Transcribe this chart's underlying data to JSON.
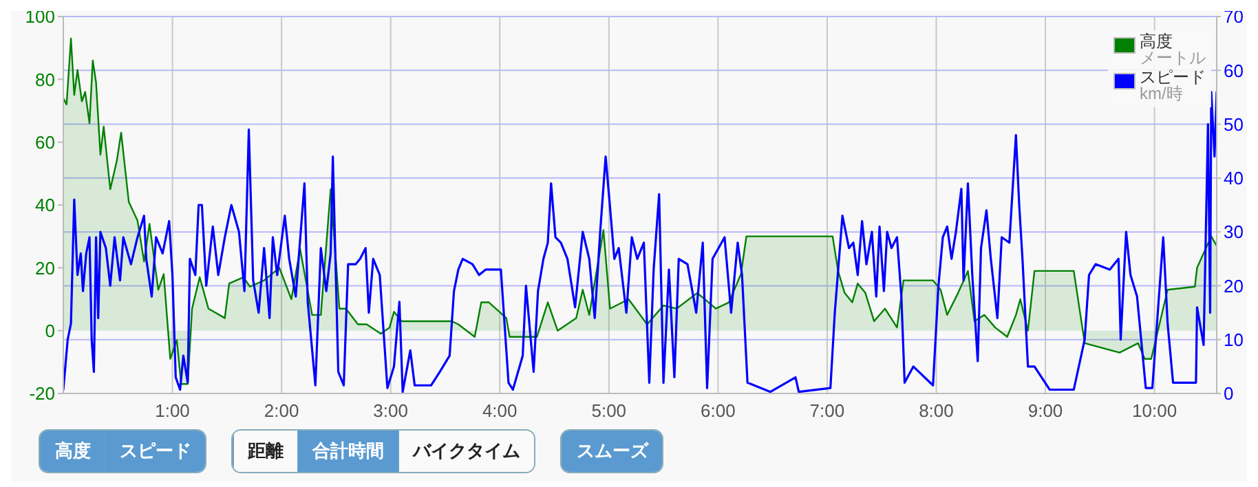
{
  "chart_data": {
    "type": "line",
    "xlim": [
      0,
      10.57
    ],
    "xticks": [
      {
        "value": 1,
        "label": "1:00"
      },
      {
        "value": 2,
        "label": "2:00"
      },
      {
        "value": 3,
        "label": "3:00"
      },
      {
        "value": 4,
        "label": "4:00"
      },
      {
        "value": 5,
        "label": "5:00"
      },
      {
        "value": 6,
        "label": "6:00"
      },
      {
        "value": 7,
        "label": "7:00"
      },
      {
        "value": 8,
        "label": "8:00"
      },
      {
        "value": 9,
        "label": "9:00"
      },
      {
        "value": 10,
        "label": "10:00"
      }
    ],
    "ylim": [
      -20,
      100
    ],
    "yticks": [
      -20,
      0,
      20,
      40,
      60,
      80,
      100
    ],
    "y2lim": [
      0,
      70
    ],
    "y2ticks": [
      0,
      10,
      20,
      30,
      40,
      50,
      60,
      70
    ],
    "grid": true,
    "legend": "top right",
    "series": [
      {
        "name": "高度",
        "type": "area",
        "color": "#008000",
        "x": [
          0,
          0.03,
          0.07,
          0.1,
          0.13,
          0.17,
          0.2,
          0.24,
          0.27,
          0.3,
          0.34,
          0.37,
          0.43,
          0.49,
          0.53,
          0.6,
          0.68,
          0.74,
          0.79,
          0.87,
          0.92,
          0.98,
          1.04,
          1.08,
          1.14,
          1.18,
          1.25,
          1.33,
          1.48,
          1.52,
          1.65,
          1.71,
          1.84,
          1.98,
          2.09,
          2.17,
          2.28,
          2.36,
          2.45,
          2.53,
          2.59,
          2.7,
          2.78,
          2.91,
          2.99,
          3.03,
          3.1,
          3.56,
          3.62,
          3.77,
          3.83,
          3.9,
          4.06,
          4.09,
          4.34,
          4.44,
          4.53,
          4.7,
          4.76,
          4.82,
          4.95,
          5.01,
          5.18,
          5.35,
          5.5,
          5.62,
          5.81,
          5.98,
          6.1,
          6.21,
          6.26,
          7.05,
          7.1,
          7.16,
          7.23,
          7.28,
          7.35,
          7.43,
          7.53,
          7.64,
          7.7,
          7.97,
          8.04,
          8.1,
          8.2,
          8.29,
          8.35,
          8.44,
          8.54,
          8.65,
          8.73,
          8.77,
          8.84,
          8.9,
          9.26,
          9.36,
          9.68,
          9.85,
          9.91,
          9.97,
          10.12,
          10.37,
          10.39,
          10.52,
          10.57
        ],
        "values": [
          74,
          72,
          93,
          75,
          83,
          73,
          76,
          66,
          86,
          79,
          56,
          65,
          45,
          54,
          63,
          41,
          35,
          22,
          34,
          13,
          18,
          -9,
          -3,
          -17,
          -17,
          7,
          17,
          7,
          4,
          15,
          17,
          14,
          16,
          20,
          10,
          26,
          5,
          5,
          45,
          7,
          7,
          2,
          2,
          -1,
          1,
          6,
          3,
          3,
          2,
          -2,
          9,
          9,
          4,
          -2,
          -2,
          9,
          0,
          4,
          13,
          5,
          32,
          7,
          10,
          2,
          8,
          7,
          12,
          7,
          9,
          18,
          30,
          30,
          19,
          12,
          9,
          15,
          12,
          3,
          7,
          1,
          16,
          16,
          13,
          5,
          12,
          19,
          3,
          5,
          1,
          -2,
          5,
          10,
          0,
          19,
          19,
          -4,
          -7,
          -4,
          -9,
          -9,
          13,
          14,
          20,
          30,
          27
        ]
      },
      {
        "name": "スピード",
        "axis": "y2",
        "color": "#0000ff",
        "x": [
          0,
          0.04,
          0.07,
          0.1,
          0.13,
          0.16,
          0.18,
          0.21,
          0.24,
          0.26,
          0.28,
          0.3,
          0.32,
          0.34,
          0.39,
          0.43,
          0.47,
          0.52,
          0.55,
          0.62,
          0.68,
          0.74,
          0.76,
          0.81,
          0.85,
          0.91,
          0.97,
          1.0,
          1.03,
          1.07,
          1.1,
          1.14,
          1.16,
          1.21,
          1.24,
          1.27,
          1.31,
          1.37,
          1.42,
          1.48,
          1.54,
          1.61,
          1.66,
          1.7,
          1.74,
          1.79,
          1.84,
          1.89,
          1.92,
          1.96,
          2.03,
          2.07,
          2.13,
          2.21,
          2.24,
          2.31,
          2.36,
          2.41,
          2.45,
          2.47,
          2.52,
          2.57,
          2.61,
          2.68,
          2.72,
          2.77,
          2.8,
          2.84,
          2.9,
          2.97,
          3.03,
          3.08,
          3.11,
          3.18,
          3.22,
          3.37,
          3.45,
          3.54,
          3.58,
          3.62,
          3.66,
          3.75,
          3.81,
          3.87,
          4.01,
          4.08,
          4.12,
          4.21,
          4.24,
          4.31,
          4.35,
          4.4,
          4.44,
          4.47,
          4.51,
          4.56,
          4.62,
          4.69,
          4.76,
          4.82,
          4.87,
          4.92,
          4.97,
          5.0,
          5.05,
          5.09,
          5.16,
          5.21,
          5.26,
          5.32,
          5.37,
          5.41,
          5.46,
          5.5,
          5.55,
          5.6,
          5.64,
          5.72,
          5.8,
          5.86,
          5.9,
          5.95,
          6.06,
          6.12,
          6.18,
          6.22,
          6.27,
          6.48,
          6.71,
          6.74,
          7.03,
          7.07,
          7.14,
          7.2,
          7.24,
          7.28,
          7.32,
          7.36,
          7.41,
          7.45,
          7.48,
          7.52,
          7.55,
          7.59,
          7.64,
          7.68,
          7.71,
          7.79,
          7.97,
          8.02,
          8.06,
          8.1,
          8.14,
          8.18,
          8.23,
          8.25,
          8.29,
          8.33,
          8.38,
          8.41,
          8.46,
          8.5,
          8.56,
          8.6,
          8.67,
          8.73,
          8.76,
          8.79,
          8.84,
          8.9,
          9.04,
          9.26,
          9.36,
          9.4,
          9.46,
          9.59,
          9.67,
          9.69,
          9.74,
          9.78,
          9.84,
          9.92,
          9.98,
          10.08,
          10.12,
          10.17,
          10.38,
          10.39,
          10.45,
          10.49,
          10.51,
          10.52,
          10.55,
          10.57
        ],
        "values": [
          0.7,
          10,
          13,
          36,
          22,
          26,
          19,
          26,
          29,
          10,
          4,
          29,
          14,
          30,
          27,
          20,
          29,
          21,
          29,
          24,
          29,
          33,
          25,
          18,
          29,
          26,
          32,
          22,
          3,
          0.7,
          7,
          2,
          25,
          22,
          35,
          35,
          20,
          31,
          22,
          29,
          35,
          30,
          19,
          49,
          21,
          15,
          27,
          14,
          29,
          22,
          33,
          25,
          18,
          39,
          17,
          1.5,
          27,
          19,
          26,
          44,
          4,
          1.5,
          24,
          24,
          25,
          27,
          15,
          25,
          22,
          1,
          5,
          17,
          0.3,
          8,
          1.5,
          1.5,
          4,
          7,
          19,
          23,
          25,
          24,
          22,
          23,
          23,
          2,
          0.7,
          7,
          20,
          4,
          19,
          25,
          28,
          39,
          29,
          28,
          25,
          16,
          30,
          25,
          14,
          30,
          44,
          37,
          25,
          27,
          15,
          29,
          25,
          28,
          2,
          23,
          37,
          2,
          23,
          3,
          25,
          24,
          15,
          28,
          1,
          25,
          29,
          15,
          28,
          22,
          2,
          0.3,
          3,
          0.3,
          1,
          15,
          33,
          27,
          28,
          22,
          32,
          24,
          30,
          18,
          31,
          19,
          30,
          27,
          29,
          18,
          2,
          5,
          1.5,
          20,
          29,
          31,
          25,
          30,
          38,
          21,
          39,
          22,
          6,
          27,
          34,
          25,
          14,
          29,
          28,
          48,
          35,
          25,
          5,
          5,
          0.7,
          0.7,
          10,
          22,
          24,
          23,
          25,
          10,
          30,
          22,
          18,
          1,
          1,
          29,
          13,
          2,
          2,
          16,
          9,
          50,
          15,
          56,
          44,
          56
        ]
      }
    ],
    "annotations": [
      "高度",
      "スピード",
      "距離",
      "合計時間",
      "バイクタイム",
      "スムーズ",
      "メートル",
      "km/時"
    ]
  }
}
